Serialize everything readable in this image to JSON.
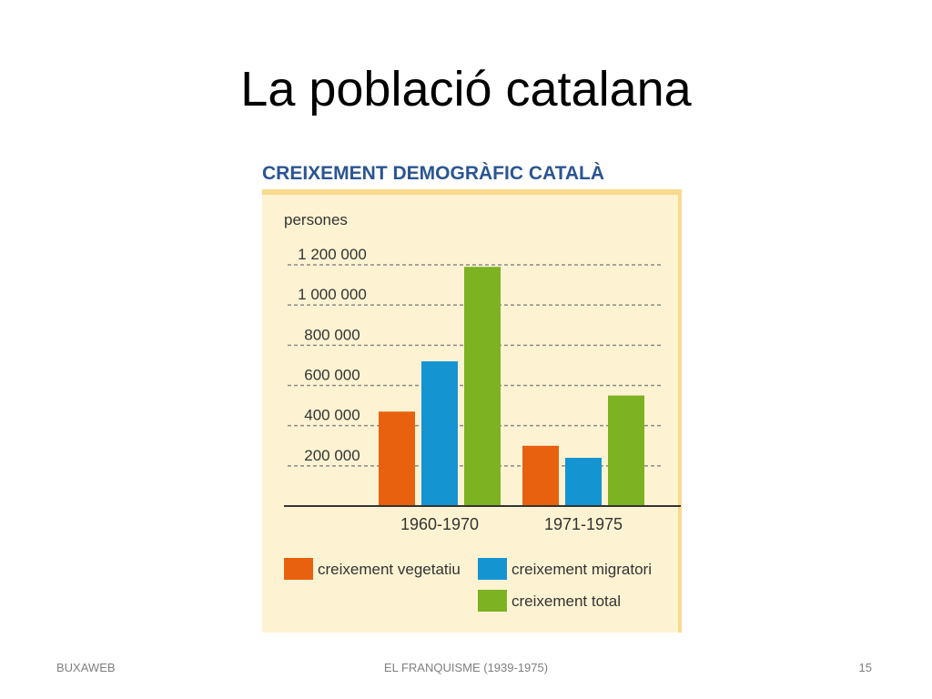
{
  "slide": {
    "title": "La població catalana",
    "footer_left": "BUXAWEB",
    "footer_center": "EL FRANQUISME (1939-1975)",
    "footer_right": "15"
  },
  "colors": {
    "panel_bg": "#fdf3d2",
    "panel_border": "#f9d98e",
    "chart_title": "#2b5591",
    "vegetatiu": "#e8610f",
    "migratori": "#1594d2",
    "total": "#7db223"
  },
  "chart_data": {
    "type": "bar",
    "title": "CREIXEMENT DEMOGRÀFIC CATALÀ",
    "ylabel": "persones",
    "categories": [
      "1960-1970",
      "1971-1975"
    ],
    "yticks": [
      {
        "value": 200000,
        "label": "200 000"
      },
      {
        "value": 400000,
        "label": "400 000"
      },
      {
        "value": 600000,
        "label": "600 000"
      },
      {
        "value": 800000,
        "label": "800 000"
      },
      {
        "value": 1000000,
        "label": "1 000 000"
      },
      {
        "value": 1200000,
        "label": "1 200 000"
      }
    ],
    "ylim": [
      0,
      1200000
    ],
    "grid": true,
    "legend_position": "bottom",
    "series": [
      {
        "name": "creixement vegetatiu",
        "key": "vegetatiu",
        "values": [
          470000,
          300000
        ]
      },
      {
        "name": "creixement migratori",
        "key": "migratori",
        "values": [
          720000,
          240000
        ]
      },
      {
        "name": "creixement total",
        "key": "total",
        "values": [
          1190000,
          550000
        ]
      }
    ]
  }
}
